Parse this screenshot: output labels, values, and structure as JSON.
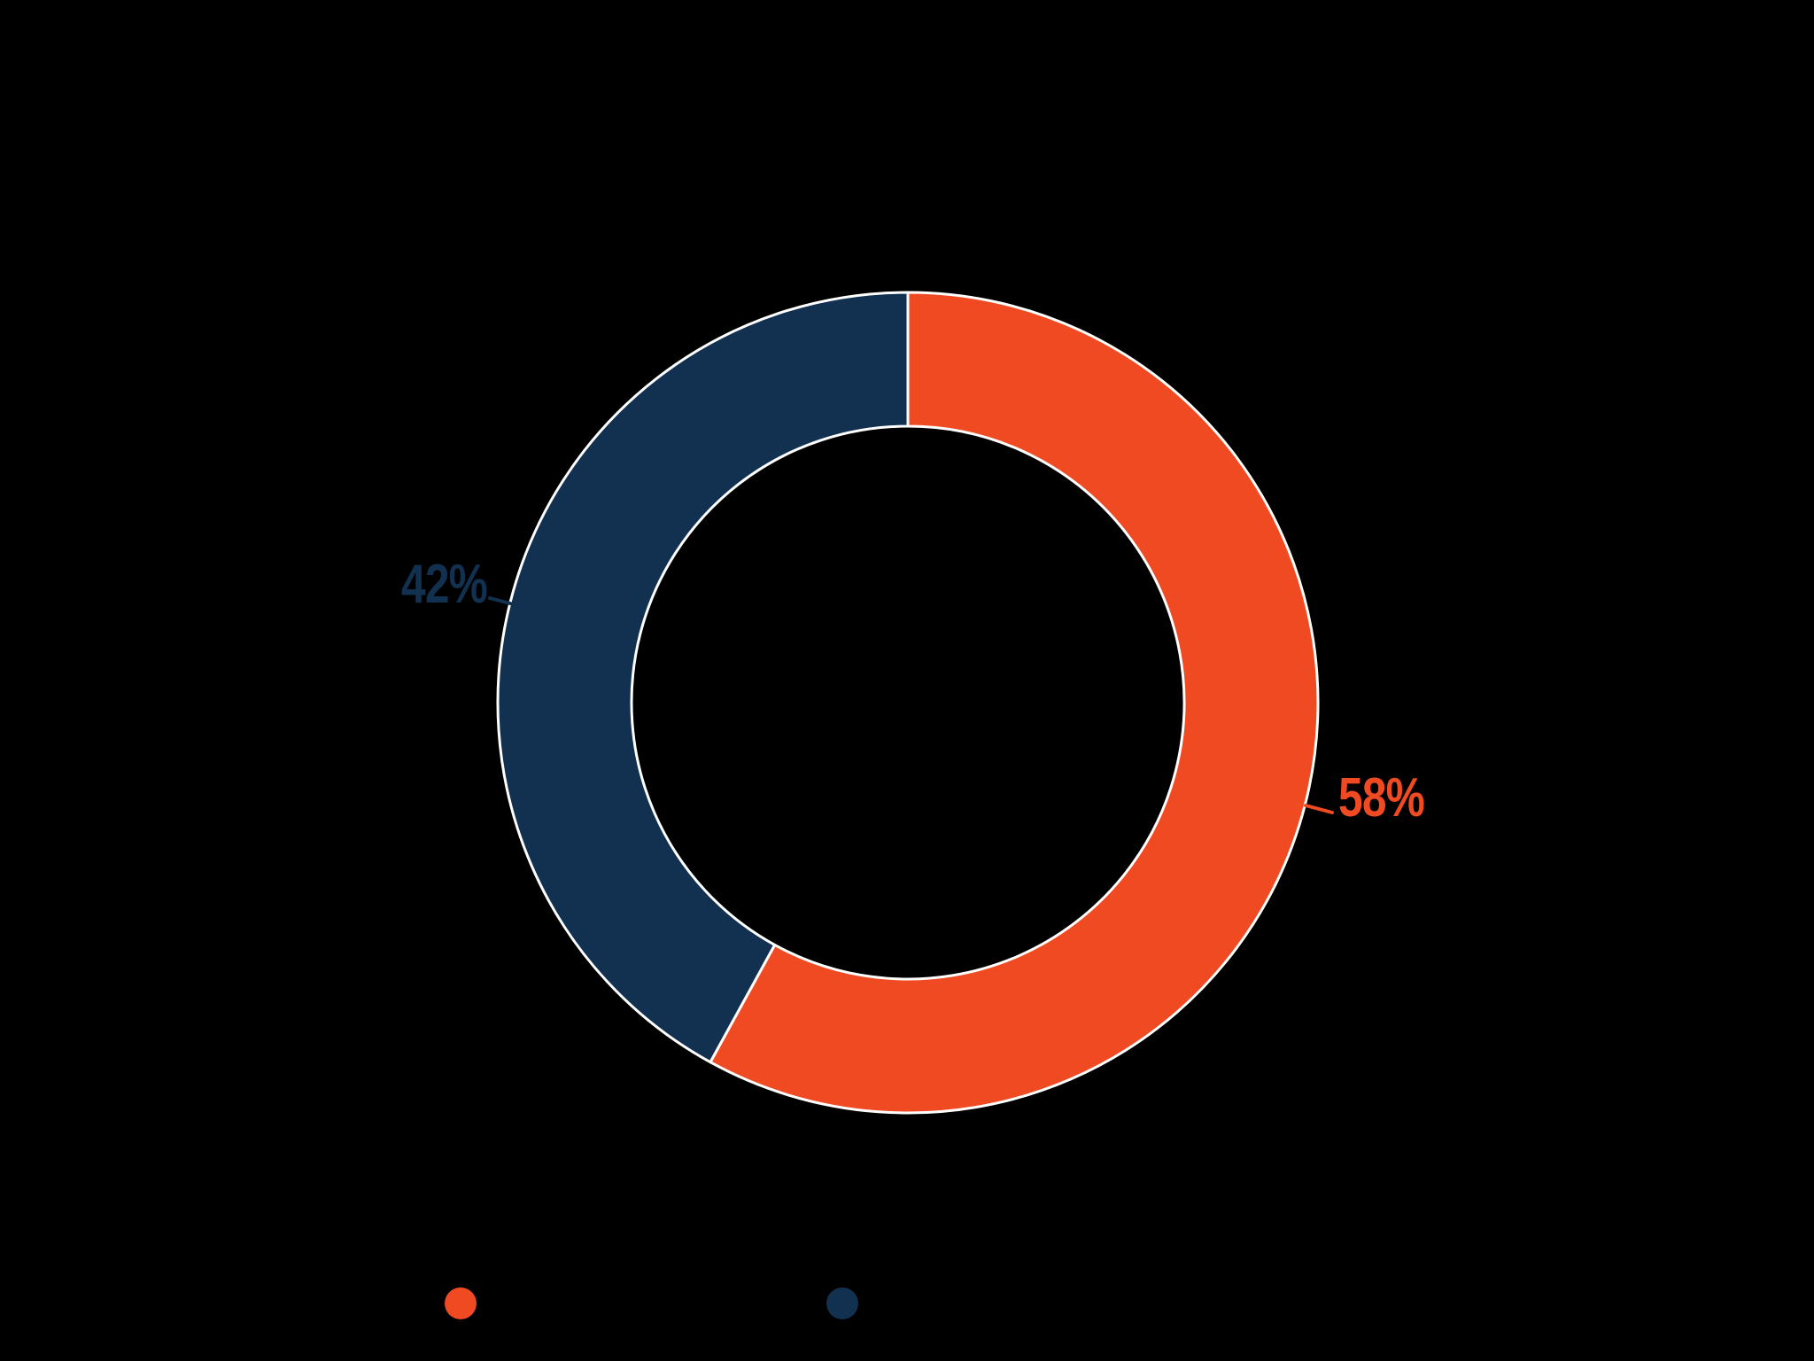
{
  "background_color": "#000000",
  "chart_data": {
    "type": "pie",
    "subtype": "donut",
    "title": "",
    "total": 100,
    "start_angle_deg": 0,
    "direction": "clockwise",
    "donut_hole_ratio": 0.67,
    "slice_border_color": "#FFFFFF",
    "slices": [
      {
        "label": "",
        "value": 58,
        "data_label": "58%",
        "color": "#F04A23"
      },
      {
        "label": "",
        "value": 42,
        "data_label": "42%",
        "color": "#12304F"
      }
    ],
    "legend": {
      "position": "bottom",
      "marker": "dot",
      "entries": [
        {
          "color": "#F04A23",
          "label": ""
        },
        {
          "color": "#12304F",
          "label": ""
        }
      ]
    }
  }
}
